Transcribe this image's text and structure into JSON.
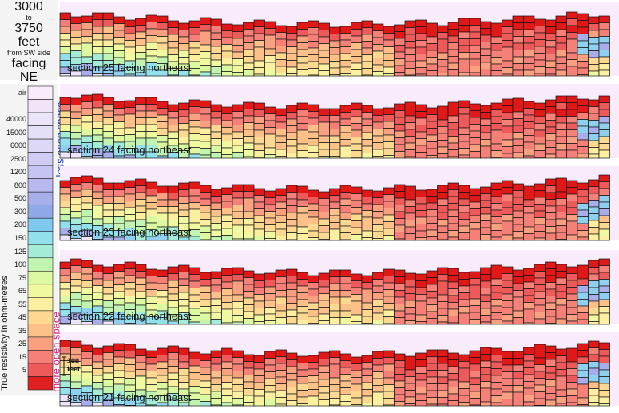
{
  "header": {
    "line1": "3000",
    "line2": "to",
    "line3": "3750",
    "line4": "feet",
    "line5": "from SW side",
    "line6": "facing",
    "line7": "NE"
  },
  "legend": {
    "title": "True resistivity in ohm-metres",
    "less_open": "less open space",
    "more_open": "more open space",
    "entries": [
      {
        "label": "air",
        "color": "#f8ecfb"
      },
      {
        "label": "",
        "color": "#f2e4f8"
      },
      {
        "label": "40000",
        "color": "#ece4f8"
      },
      {
        "label": "15000",
        "color": "#e4e0f8"
      },
      {
        "label": "6000",
        "color": "#dcd8f6"
      },
      {
        "label": "2500",
        "color": "#d0ccf4"
      },
      {
        "label": "1200",
        "color": "#c6c4f2"
      },
      {
        "label": "800",
        "color": "#b8b8ee"
      },
      {
        "label": "500",
        "color": "#a8aeea"
      },
      {
        "label": "300",
        "color": "#8fa8e8"
      },
      {
        "label": "200",
        "color": "#7fc8ee"
      },
      {
        "label": "150",
        "color": "#92e0ec"
      },
      {
        "label": "125",
        "color": "#a4ecd8"
      },
      {
        "label": "100",
        "color": "#c0f4b0"
      },
      {
        "label": "75",
        "color": "#dcf8a0"
      },
      {
        "label": "65",
        "color": "#f0f8a0"
      },
      {
        "label": "55",
        "color": "#fcf0a0"
      },
      {
        "label": "45",
        "color": "#fcd890"
      },
      {
        "label": "35",
        "color": "#fcc088"
      },
      {
        "label": "25",
        "color": "#f8a080"
      },
      {
        "label": "15",
        "color": "#f48078"
      },
      {
        "label": "5",
        "color": "#ee5a5a"
      },
      {
        "label": "",
        "color": "#e02020"
      }
    ]
  },
  "scale_bar": {
    "line1": "300",
    "line2": "feet"
  },
  "sections": [
    {
      "label": "section 25 facing northeast"
    },
    {
      "label": "section 24 facing northeast"
    },
    {
      "label": "section 23 facing northeast"
    },
    {
      "label": "section 22 facing northeast"
    },
    {
      "label": "section 21 facing northeast"
    }
  ]
}
